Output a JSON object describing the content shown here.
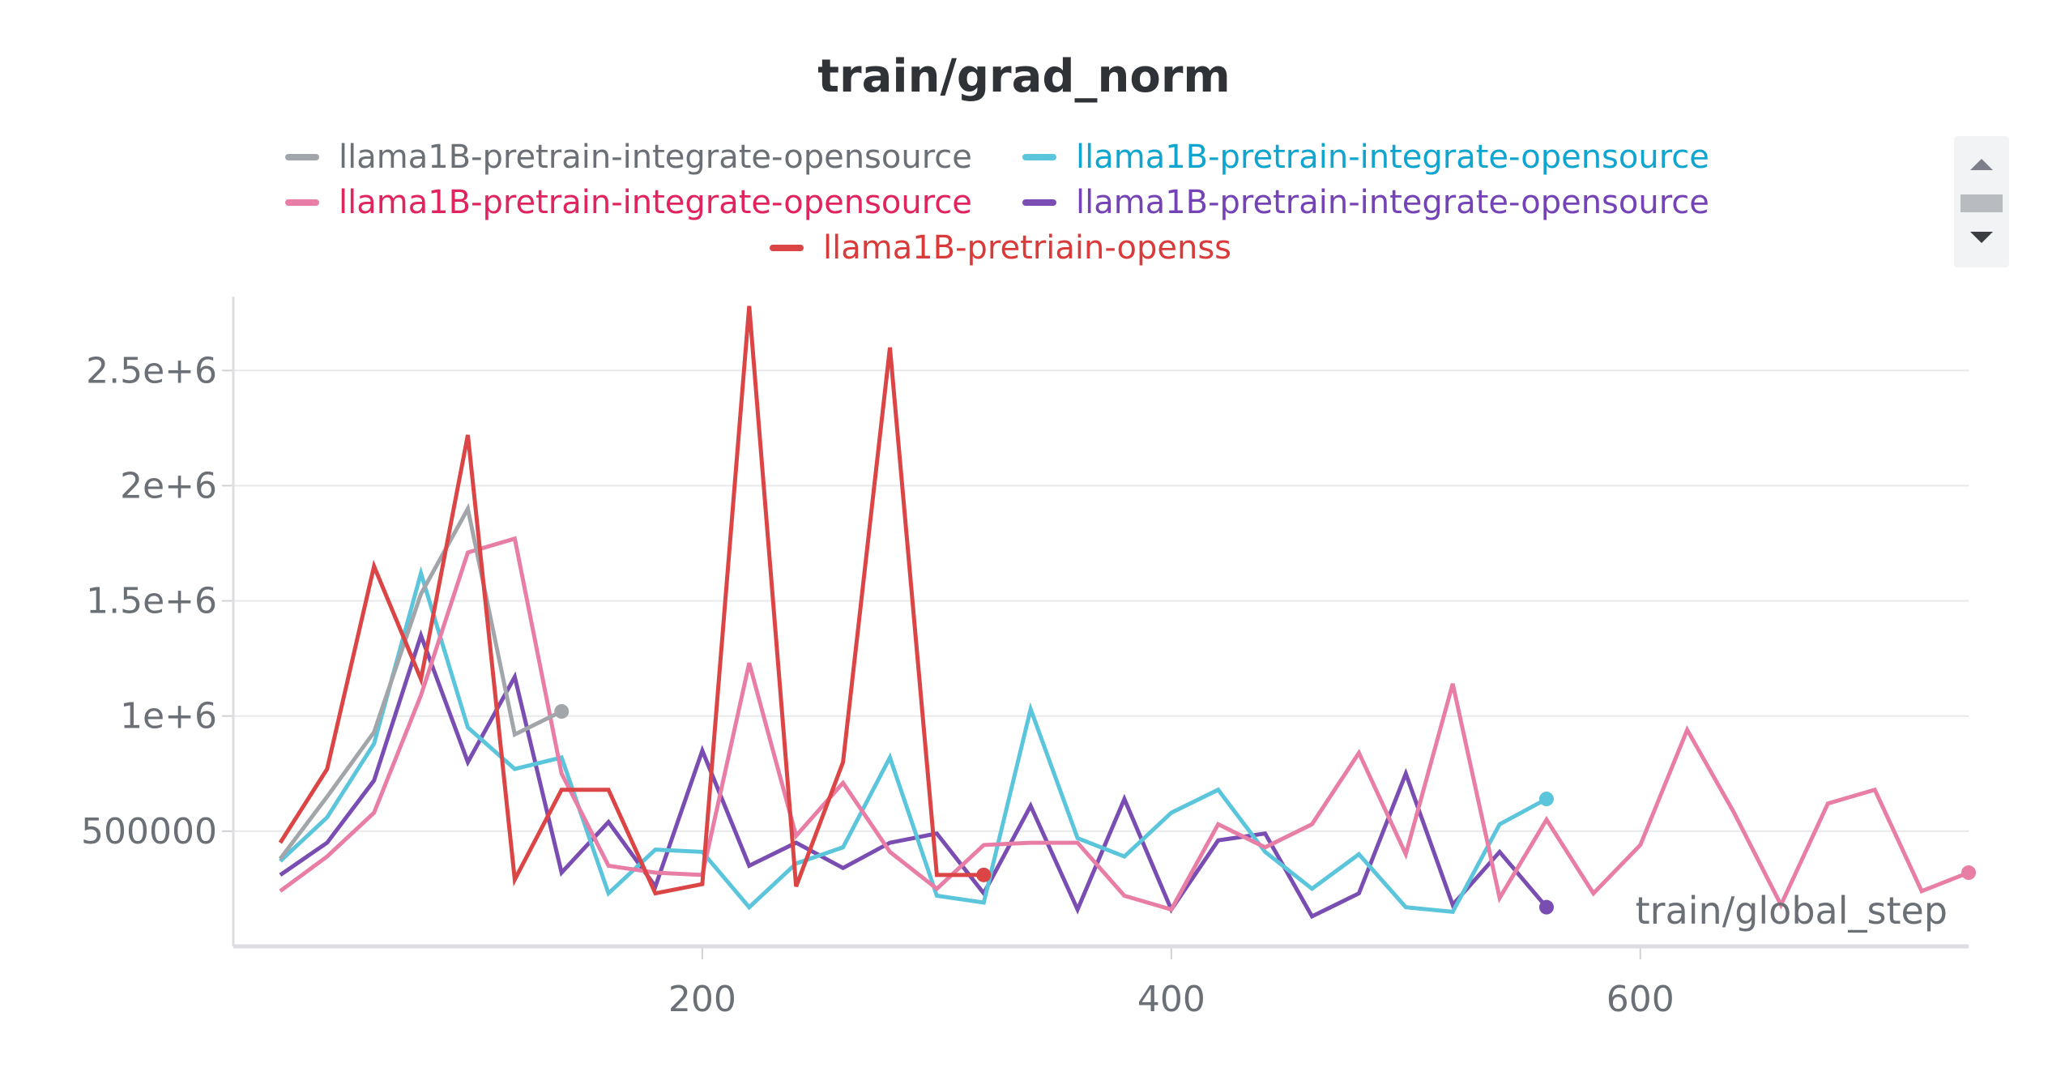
{
  "chart_data": {
    "type": "line",
    "title": "train/grad_norm",
    "xlabel": "train/global_step",
    "ylabel": "",
    "xlim": [
      0,
      740
    ],
    "ylim": [
      0,
      2800000
    ],
    "x_ticks": [
      200,
      400,
      600
    ],
    "x_tick_labels": [
      "200",
      "400",
      "600"
    ],
    "y_ticks": [
      500000,
      1000000,
      1500000,
      2000000,
      2500000
    ],
    "y_tick_labels": [
      "500000",
      "1e+6",
      "1.5e+6",
      "2e+6",
      "2.5e+6"
    ],
    "grid": true,
    "legend_position": "top",
    "series": [
      {
        "name": "llama1B-pretrain-integrate-opensource",
        "color": "#a2a6ab",
        "label_color": "#6b6f76",
        "x": [
          20,
          40,
          60,
          80,
          100,
          120,
          140
        ],
        "y": [
          380000,
          650000,
          930000,
          1530000,
          1900000,
          920000,
          1020000
        ]
      },
      {
        "name": "llama1B-pretrain-integrate-opensource",
        "color": "#e87ea6",
        "label_color": "#e0245e",
        "x": [
          20,
          40,
          60,
          80,
          100,
          120,
          140,
          160,
          180,
          200,
          220,
          240,
          260,
          280,
          300,
          320,
          340,
          360,
          380,
          400,
          420,
          440,
          460,
          480,
          500,
          520,
          540,
          560,
          580,
          600,
          620,
          640,
          660,
          680,
          700,
          720,
          740
        ],
        "y": [
          240000,
          390000,
          580000,
          1090000,
          1710000,
          1770000,
          750000,
          350000,
          320000,
          310000,
          1230000,
          480000,
          710000,
          410000,
          250000,
          440000,
          450000,
          450000,
          220000,
          160000,
          530000,
          430000,
          530000,
          840000,
          400000,
          1140000,
          210000,
          550000,
          230000,
          440000,
          940000,
          580000,
          180000,
          620000,
          680000,
          240000,
          320000
        ]
      },
      {
        "name": "llama1B-pretrain-integrate-opensource",
        "color": "#5bc5db",
        "label_color": "#10a5cf",
        "x": [
          20,
          40,
          60,
          80,
          100,
          120,
          140,
          160,
          180,
          200,
          220,
          240,
          260,
          280,
          300,
          320,
          340,
          360,
          380,
          400,
          420,
          440,
          460,
          480,
          500,
          520,
          540,
          560
        ],
        "y": [
          370000,
          560000,
          880000,
          1620000,
          950000,
          770000,
          820000,
          230000,
          420000,
          410000,
          170000,
          360000,
          430000,
          820000,
          220000,
          190000,
          1030000,
          470000,
          390000,
          580000,
          680000,
          410000,
          250000,
          400000,
          170000,
          150000,
          530000,
          640000
        ]
      },
      {
        "name": "llama1B-pretrain-integrate-opensource",
        "color": "#7a4db3",
        "label_color": "#7443b5",
        "x": [
          20,
          40,
          60,
          80,
          100,
          120,
          140,
          160,
          180,
          200,
          220,
          240,
          260,
          280,
          300,
          320,
          340,
          360,
          380,
          400,
          420,
          440,
          460,
          480,
          500,
          520,
          540,
          560
        ],
        "y": [
          310000,
          450000,
          720000,
          1350000,
          800000,
          1170000,
          320000,
          540000,
          260000,
          850000,
          350000,
          450000,
          340000,
          450000,
          490000,
          230000,
          610000,
          160000,
          640000,
          160000,
          460000,
          490000,
          130000,
          230000,
          750000,
          180000,
          410000,
          170000
        ]
      },
      {
        "name": "llama1B-pretriain-openss",
        "color": "#db4545",
        "label_color": "#d93a3a",
        "x": [
          20,
          40,
          60,
          80,
          100,
          120,
          140,
          160,
          180,
          200,
          220,
          240,
          260,
          280,
          300,
          320
        ],
        "y": [
          450000,
          770000,
          1650000,
          1160000,
          2220000,
          290000,
          680000,
          680000,
          230000,
          270000,
          2780000,
          260000,
          800000,
          2600000,
          310000,
          310000
        ]
      }
    ]
  }
}
